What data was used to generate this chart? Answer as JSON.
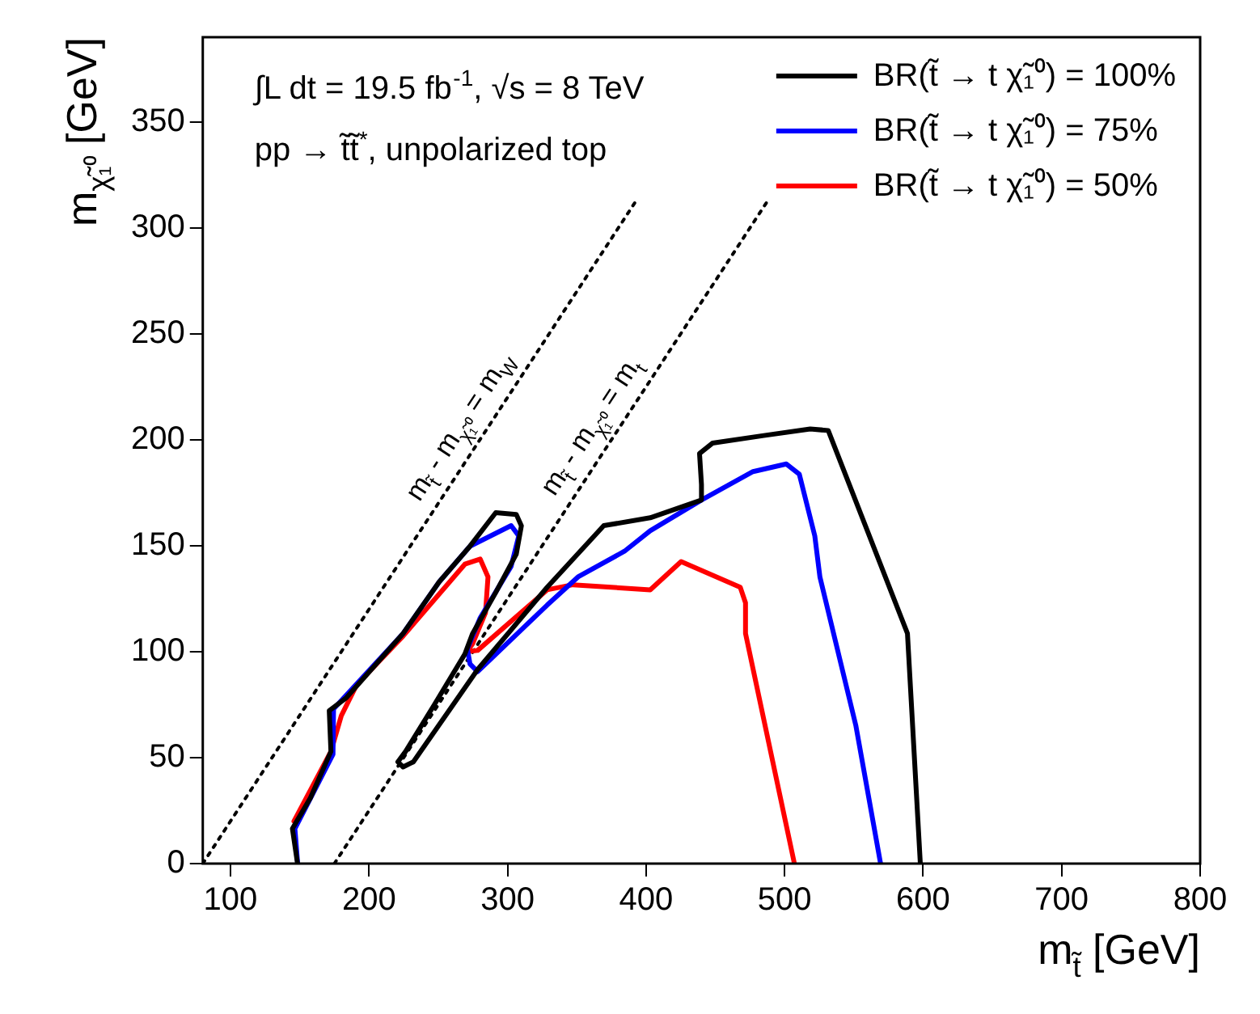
{
  "chart_data": {
    "type": "line",
    "xlabel": "m$_{t̃}$ [GeV]",
    "ylabel": "m$_{χ̃₁⁰}$ [GeV]",
    "xlim": [
      80,
      800
    ],
    "xticks": [
      100,
      200,
      300,
      400,
      500,
      600,
      700,
      800
    ],
    "ylim": [
      0,
      390
    ],
    "yticks": [
      0,
      50,
      100,
      150,
      200,
      250,
      300,
      350
    ],
    "grid": false,
    "legend": "top right",
    "annotations": [
      "∫L dt = 19.5 fb$^{-1}$, √s = 8 TeV",
      "pp → t̃t̃$^{*}$, unpolarized top",
      {
        "text": "m$_{t̃}$ - m$_{χ̃₁⁰}$ = m$_{W}$",
        "x": 280,
        "y": 200
      },
      {
        "text": "m$_{t̃}$ - m$_{χ̃₁⁰}$ = m$_{t}$",
        "x": 375,
        "y": 200
      }
    ],
    "series": [
      {
        "name": "BR(t̃ → t χ̃₁⁰) = 100%",
        "color": "#000000",
        "x": [
          148.4,
          144.7,
          157.7,
          172.5,
          171.3,
          183.7,
          224.6,
          250.6,
          272.9,
          291.5,
          306.3,
          310,
          306.3,
          291.5,
          274.8,
          269.2,
          246.9,
          226.4,
          220.8,
          224.6,
          232,
          278.4,
          328.6,
          369.5,
          403,
          440,
          440,
          438.6,
          447.9,
          485,
          518.5,
          531.5,
          588.7,
          598
        ],
        "values": [
          0,
          16.5,
          31,
          52.9,
          72.2,
          78.3,
          108.6,
          132.9,
          149.8,
          165.6,
          164.8,
          159.4,
          146,
          128,
          108.6,
          98.9,
          74.7,
          52.9,
          48,
          45.6,
          48,
          91.6,
          130.4,
          159.5,
          163.2,
          171.6,
          178.9,
          193.5,
          198.4,
          202,
          205.1,
          204.4,
          108.6,
          0
        ]
      },
      {
        "name": "BR(t̃ → t χ̃₁⁰) = 75%",
        "color": "#0000ff",
        "x": [
          148.5,
          146.5,
          174,
          174.4,
          224.6,
          250.6,
          272.9,
          302.6,
          308.1,
          302.6,
          280.3,
          271,
          272.9,
          278.4,
          328.6,
          350.9,
          384.4,
          403,
          440,
          477.2,
          501.3,
          510.6,
          521.8,
          525.5,
          551.5,
          569.3
        ],
        "values": [
          0,
          16.5,
          51.6,
          73,
          108.6,
          132.9,
          149.8,
          159.5,
          154.7,
          140.3,
          116,
          101.4,
          94.2,
          90.6,
          122,
          135.3,
          147.4,
          157.1,
          171.6,
          185,
          188.6,
          183.8,
          154.7,
          135.3,
          65,
          0
        ]
      },
      {
        "name": "BR(t̃ → t χ̃₁⁰) = 50%",
        "color": "#ff0000",
        "x": [
          145.8,
          172.5,
          180,
          191.1,
          224.6,
          269.2,
          280.3,
          285.9,
          284.1,
          274.8,
          271,
          278.4,
          328.6,
          347.2,
          403,
          425.3,
          468,
          471.8,
          471.8,
          507.1
        ],
        "values": [
          20,
          52.9,
          69.8,
          84.4,
          107.4,
          141.3,
          143.7,
          135.3,
          118.4,
          103.8,
          100.1,
          100.6,
          129.2,
          131.6,
          129.2,
          142.5,
          130.4,
          123.1,
          108.6,
          0
        ]
      },
      {
        "color": "#000000",
        "line_style": "dotted",
        "x": [
          80,
          393
        ],
        "values": [
          0,
          313
        ]
      },
      {
        "color": "#000000",
        "line_style": "dotted",
        "x": [
          175,
          488
        ],
        "values": [
          0,
          313
        ]
      }
    ]
  }
}
